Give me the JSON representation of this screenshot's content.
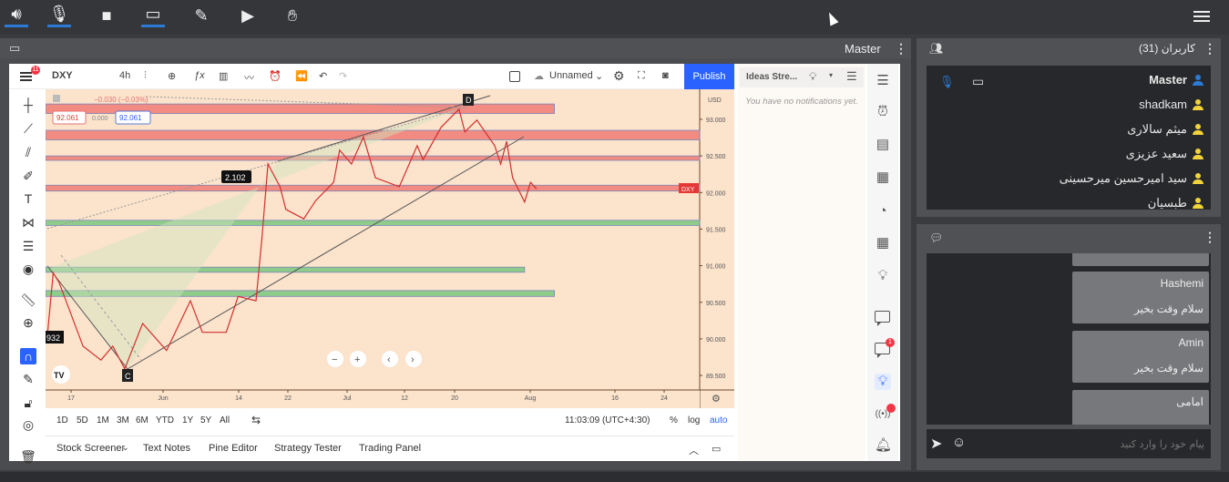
{
  "topbar": {
    "icons": [
      "speaker-icon",
      "microphone-icon",
      "camera-icon",
      "screen-share-icon",
      "brush-icon",
      "play-icon",
      "hand-icon"
    ],
    "accent": "#2b7bd6"
  },
  "main_panel": {
    "title": "Master"
  },
  "tradingview": {
    "symbol": "DXY",
    "interval": "4h",
    "layout_name": "Unnamed",
    "publish_label": "Publish",
    "alerts_badge": "11",
    "legend": {
      "change": "−0.030 (−0.03%)",
      "bid": "92.061",
      "spread": "0.000",
      "ask": "92.061"
    },
    "currency": "USD",
    "price_ticks": [
      "93.000",
      "92.500",
      "92.000",
      "91.500",
      "91.000",
      "90.500",
      "90.000",
      "89.500"
    ],
    "time_ticks": [
      "17",
      "Jun",
      "14",
      "22",
      "Jul",
      "12",
      "20",
      "Aug",
      "16",
      "24"
    ],
    "last_price_label": "DXY",
    "annotations": {
      "d": "D",
      "c": "C",
      "measure": "2.102",
      "left_value": "932"
    },
    "ranges": [
      "1D",
      "5D",
      "1M",
      "3M",
      "6M",
      "YTD",
      "1Y",
      "5Y",
      "All"
    ],
    "clock": "11:03:09 (UTC+4:30)",
    "pct": "%",
    "log": "log",
    "auto": "auto",
    "bottom_tabs": [
      "Stock Screener",
      "Text Notes",
      "Pine Editor",
      "Strategy Tester",
      "Trading Panel"
    ],
    "ideas": {
      "title": "Ideas Stre...",
      "empty": "You have no notifications yet."
    },
    "chat_badge": "1",
    "chart_colors": {
      "background": "#fbe3cc",
      "red_zone": "#f28b82",
      "green_zone": "#8fcb8a",
      "candle": "#e53935"
    }
  },
  "chart_data": {
    "type": "line",
    "price_axis": {
      "min": 89.35,
      "max": 93.4
    },
    "series": [
      [
        "May 13",
        90.02
      ],
      [
        "May 14",
        90.9
      ],
      [
        "May 15",
        90.77
      ],
      [
        "May 19",
        89.9
      ],
      [
        "May 22",
        89.71
      ],
      [
        "May 24",
        89.9
      ],
      [
        "May 26",
        89.59
      ],
      [
        "May 29",
        90.21
      ],
      [
        "Jun 2",
        89.84
      ],
      [
        "Jun 6",
        90.52
      ],
      [
        "Jun 8",
        90.09
      ],
      [
        "Jun 12",
        90.09
      ],
      [
        "Jun 14",
        90.58
      ],
      [
        "Jun 17",
        90.52
      ],
      [
        "Jun 18",
        91.39
      ],
      [
        "Jun 19",
        92.39
      ],
      [
        "Jun 21",
        92.08
      ],
      [
        "Jun 22",
        91.77
      ],
      [
        "Jun 25",
        91.64
      ],
      [
        "Jun 27",
        91.89
      ],
      [
        "Jun 30",
        92.14
      ],
      [
        "Jul 1",
        92.58
      ],
      [
        "Jul 3",
        92.39
      ],
      [
        "Jul 5",
        92.76
      ],
      [
        "Jul 7",
        92.2
      ],
      [
        "Jul 11",
        92.08
      ],
      [
        "Jul 14",
        92.64
      ],
      [
        "Jul 15",
        92.45
      ],
      [
        "Jul 18",
        92.89
      ],
      [
        "Jul 21",
        93.14
      ],
      [
        "Jul 22",
        92.83
      ],
      [
        "Jul 24",
        92.99
      ],
      [
        "Jul 27",
        92.64
      ],
      [
        "Jul 28",
        92.39
      ],
      [
        "Jul 29",
        92.7
      ],
      [
        "Jul 30",
        92.2
      ],
      [
        "Aug 1",
        91.87
      ],
      [
        "Aug 2",
        92.14
      ],
      [
        "Aug 3",
        92.05
      ]
    ],
    "zones": [
      {
        "color": "red",
        "top": 93.21,
        "bottom": 93.08,
        "end": "Aug 6"
      },
      {
        "color": "red",
        "top": 92.85,
        "bottom": 92.72,
        "end": ""
      },
      {
        "color": "red",
        "top": 92.5,
        "bottom": 92.44,
        "end": "Aug 31"
      },
      {
        "color": "red",
        "top": 92.1,
        "bottom": 92.02,
        "end": ""
      },
      {
        "color": "green",
        "top": 91.62,
        "bottom": 91.55,
        "end": ""
      },
      {
        "color": "green",
        "top": 90.98,
        "bottom": 90.91,
        "end": "Aug 1"
      },
      {
        "color": "green",
        "top": 90.66,
        "bottom": 90.58,
        "end": "Aug 6"
      }
    ]
  },
  "users": {
    "title": "کاربران (31)",
    "list": [
      {
        "name": "Master",
        "role": "host"
      },
      {
        "name": "shadkam"
      },
      {
        "name": "میثم سالاری"
      },
      {
        "name": "سعید عزیزی"
      },
      {
        "name": "سید امیرحسین میرحسینی"
      },
      {
        "name": "طبسیان"
      }
    ],
    "host_color": "#2b7bd6",
    "user_color": "#f2d43a"
  },
  "chat": {
    "messages": [
      {
        "author": "Hashemi",
        "text": "سلام وقت بخیر"
      },
      {
        "author": "Amin",
        "text": "سلام وقت بخیر"
      },
      {
        "author": "امامی",
        "text": ""
      }
    ],
    "placeholder": "پیام خود را وارد کنید"
  }
}
